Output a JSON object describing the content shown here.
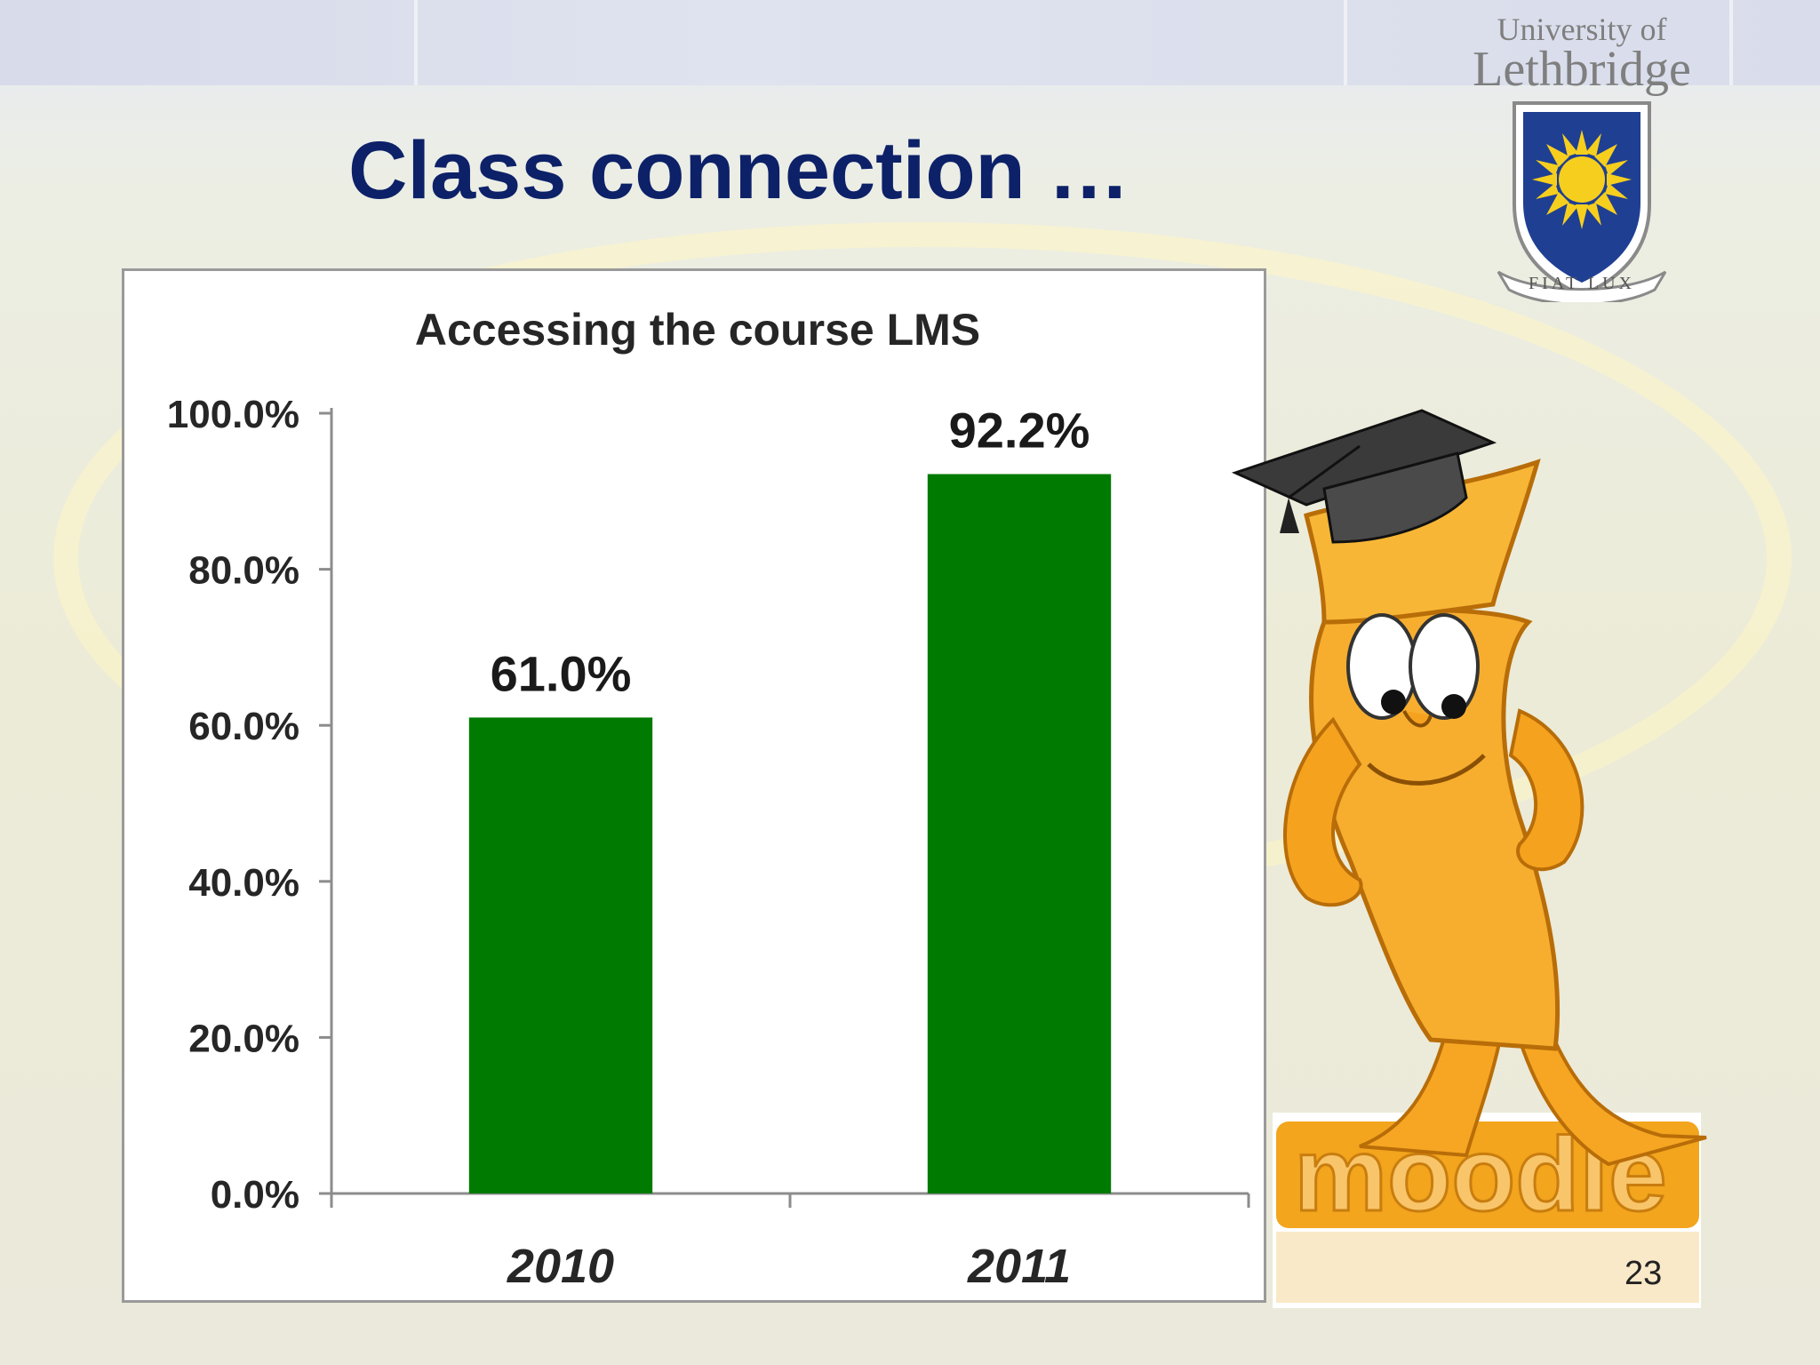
{
  "slide": {
    "title": "Class connection …",
    "page_number": "23"
  },
  "logo": {
    "line1": "University of",
    "line2": "Lethbridge",
    "motto": "FIAT LUX"
  },
  "mascot": {
    "wordmark": "moodle"
  },
  "colors": {
    "title": "#0d2168",
    "bar": "#007a00",
    "shield_blue": "#1f3f93",
    "sun": "#f6cf1e",
    "mascot_orange": "#f5a623"
  },
  "chart_data": {
    "type": "bar",
    "title": "Accessing the course LMS",
    "categories": [
      "2010",
      "2011"
    ],
    "values": [
      61.0,
      92.2
    ],
    "value_labels": [
      "61.0%",
      "92.2%"
    ],
    "ylim": [
      0,
      100
    ],
    "y_ticks": [
      "0.0%",
      "20.0%",
      "40.0%",
      "60.0%",
      "80.0%",
      "100.0%"
    ],
    "xlabel": "",
    "ylabel": "",
    "grid": false,
    "legend": "none"
  }
}
